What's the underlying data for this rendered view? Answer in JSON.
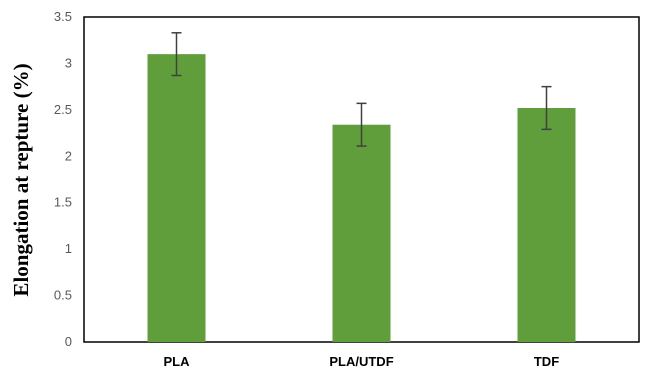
{
  "chart_data": {
    "type": "bar",
    "ylabel": "Elongation at repture (%)",
    "xlabel": "",
    "categories": [
      "PLA",
      "PLA/UTDF",
      "TDF"
    ],
    "values": [
      3.1,
      2.34,
      2.52
    ],
    "errors": [
      0.23,
      0.23,
      0.23
    ],
    "ylim": [
      0,
      3.5
    ],
    "yticks": [
      "0",
      "0.5",
      "1",
      "1.5",
      "2",
      "2.5",
      "3",
      "3.5"
    ],
    "grid": false,
    "legend": "none",
    "bar_color": "#5f9e3a",
    "error_color": "#404040",
    "frame_color": "#000000"
  }
}
